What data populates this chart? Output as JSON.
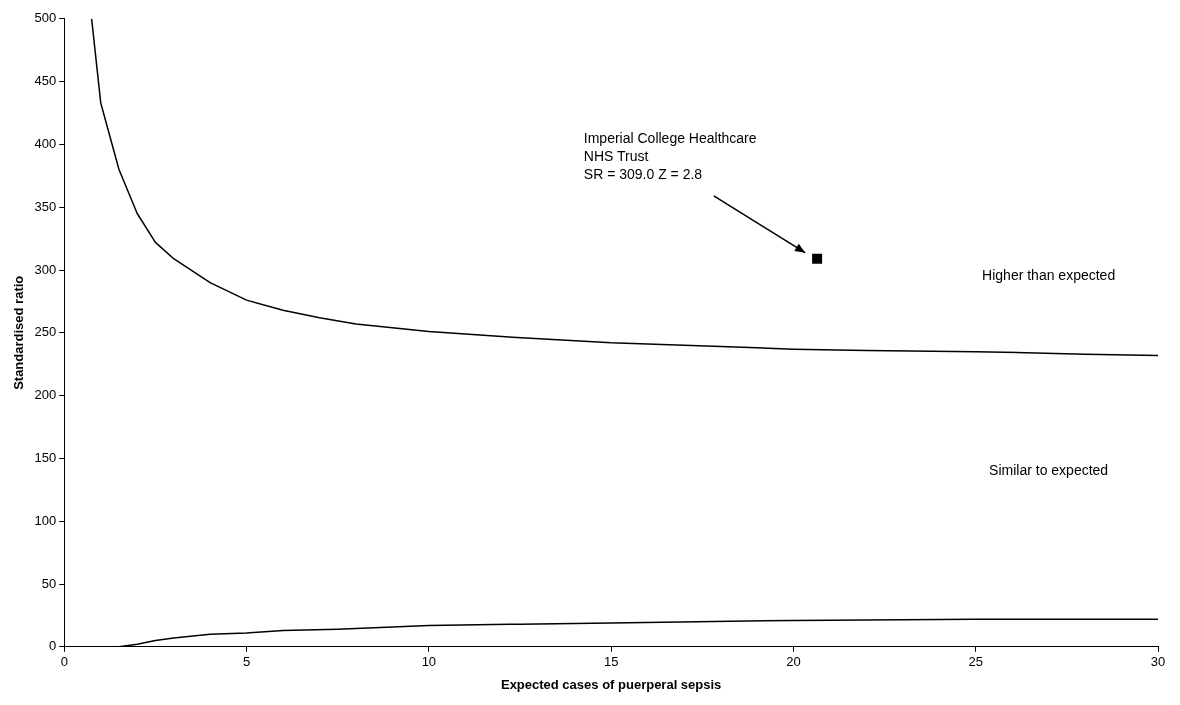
{
  "chart_data": {
    "type": "line",
    "xlabel": "Expected cases of puerperal sepsis",
    "ylabel": "Standardised ratio",
    "xlim": [
      0,
      30
    ],
    "ylim": [
      0,
      500
    ],
    "xticks": [
      0,
      5,
      10,
      15,
      20,
      25,
      30
    ],
    "yticks": [
      0,
      50,
      100,
      150,
      200,
      250,
      300,
      350,
      400,
      450,
      500
    ],
    "grid": false,
    "legend": false,
    "series": [
      {
        "type": "line",
        "color": "#000000",
        "marker": "none",
        "x": [
          0.75,
          1,
          1.5,
          2,
          2.5,
          3,
          4,
          5,
          6,
          7,
          8,
          10,
          12,
          15,
          18,
          20,
          22,
          25,
          28,
          30
        ],
        "values": [
          500,
          433,
          380,
          345,
          322,
          309,
          290,
          276,
          268,
          262,
          257,
          251,
          247,
          242,
          239,
          237,
          236,
          235,
          233,
          232
        ]
      },
      {
        "type": "line",
        "color": "#000000",
        "marker": "none",
        "x": [
          0,
          1,
          1.5,
          2,
          2.5,
          3,
          4,
          5,
          6,
          7.5,
          10,
          12.5,
          15,
          20,
          25,
          30
        ],
        "values": [
          0,
          0,
          0,
          2,
          5,
          7,
          10,
          11,
          13,
          14,
          17,
          18,
          19,
          21,
          22,
          22
        ]
      },
      {
        "type": "scatter",
        "color": "#000000",
        "marker": "square",
        "x": [
          20.65
        ],
        "values": [
          309
        ]
      }
    ],
    "annotations": [
      "Imperial College Healthcare\nNHS Trust\nSR = 309.0 Z = 2.8",
      "Higher than expected",
      "Similar to expected"
    ]
  }
}
